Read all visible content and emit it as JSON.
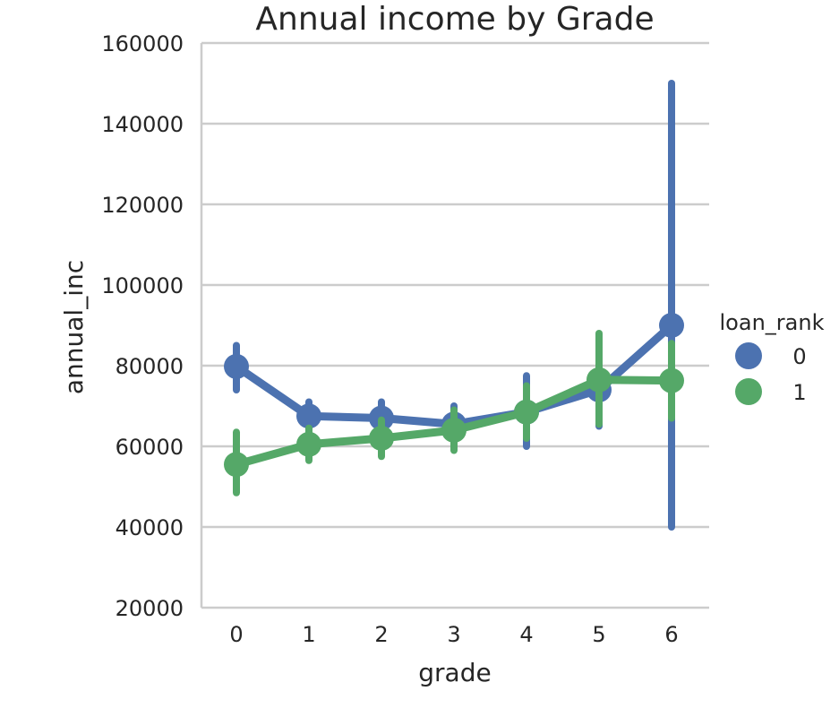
{
  "chart_data": {
    "type": "line",
    "title": "Annual income by Grade",
    "xlabel": "grade",
    "ylabel": "annual_inc",
    "categories": [
      "0",
      "1",
      "2",
      "3",
      "4",
      "5",
      "6"
    ],
    "ylim": [
      20000,
      160000
    ],
    "yticks": [
      "20000",
      "40000",
      "60000",
      "80000",
      "100000",
      "120000",
      "140000",
      "160000"
    ],
    "yticks_values": [
      20000,
      40000,
      60000,
      80000,
      100000,
      120000,
      140000,
      160000
    ],
    "grid": "horizontal",
    "legend": {
      "title": "loan_rank",
      "placement": "right"
    },
    "series": [
      {
        "name": "0",
        "color": "#4c72b0",
        "values": [
          79800,
          67500,
          67000,
          65500,
          68500,
          74000,
          90000
        ],
        "ci_low": [
          74000,
          63500,
          62500,
          60500,
          60000,
          65000,
          40000
        ],
        "ci_high": [
          85000,
          71000,
          71000,
          70000,
          77500,
          84500,
          150000
        ]
      },
      {
        "name": "1",
        "color": "#55a868",
        "values": [
          55500,
          60500,
          62000,
          64000,
          68500,
          76500,
          76300
        ],
        "ci_low": [
          48500,
          56500,
          57500,
          59000,
          62000,
          65500,
          67000
        ],
        "ci_high": [
          63500,
          64500,
          66500,
          69000,
          75000,
          88000,
          85500
        ]
      }
    ]
  }
}
